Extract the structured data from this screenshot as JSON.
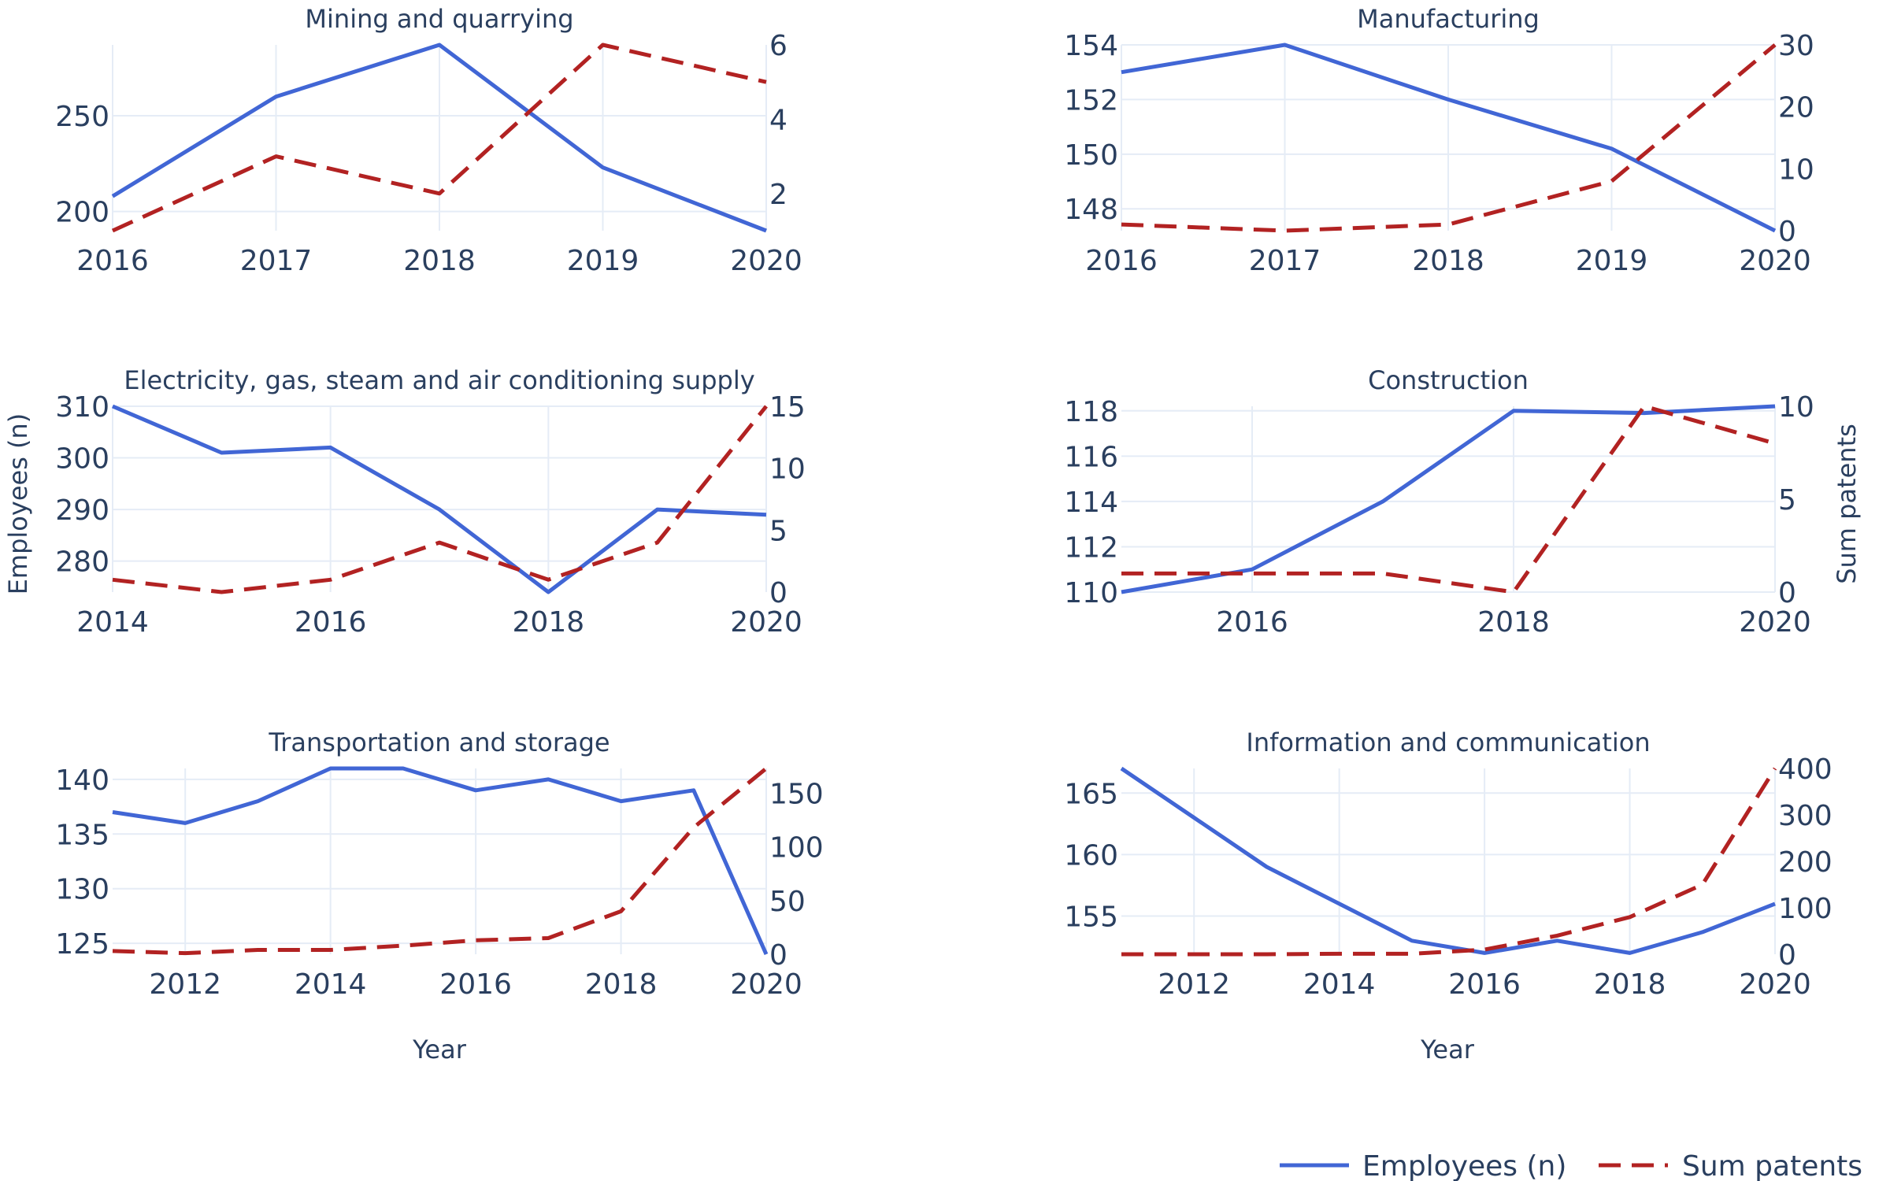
{
  "colors": {
    "employees": "#4166d5",
    "patents": "#b22222",
    "grid": "#e5ecf6",
    "text": "#2a3f5f"
  },
  "axis_titles": {
    "y_left": "Employees (n)",
    "y_right": "Sum patents",
    "x_bottom_left": "Year",
    "x_bottom_right": "Year"
  },
  "legend": {
    "position": "bottom-right",
    "items": [
      "Employees (n)",
      "Sum patents"
    ]
  },
  "chart_data": [
    {
      "type": "line",
      "title": "Mining and quarrying",
      "x": [
        2016,
        2017,
        2018,
        2019,
        2020
      ],
      "x_ticks": [
        2016,
        2017,
        2018,
        2019,
        2020
      ],
      "xlim": [
        2016,
        2020
      ],
      "series": [
        {
          "name": "Employees (n)",
          "axis": "left",
          "style": "solid",
          "values": [
            208,
            260,
            287,
            223,
            190
          ]
        },
        {
          "name": "Sum patents",
          "axis": "right",
          "style": "dash",
          "values": [
            1,
            3,
            2,
            6,
            5
          ]
        }
      ],
      "y_left": {
        "range": [
          190,
          287
        ],
        "ticks": [
          200,
          250
        ]
      },
      "y_right": {
        "range": [
          1,
          6
        ],
        "ticks": [
          2,
          4,
          6
        ]
      }
    },
    {
      "type": "line",
      "title": "Manufacturing",
      "x": [
        2016,
        2017,
        2018,
        2019,
        2020
      ],
      "x_ticks": [
        2016,
        2017,
        2018,
        2019,
        2020
      ],
      "xlim": [
        2016,
        2020
      ],
      "series": [
        {
          "name": "Employees (n)",
          "axis": "left",
          "style": "solid",
          "values": [
            153,
            154,
            152,
            150.2,
            147.2
          ]
        },
        {
          "name": "Sum patents",
          "axis": "right",
          "style": "dash",
          "values": [
            1,
            0,
            1,
            8,
            30
          ]
        }
      ],
      "y_left": {
        "range": [
          147.2,
          154
        ],
        "ticks": [
          148,
          150,
          152,
          154
        ]
      },
      "y_right": {
        "range": [
          0,
          30
        ],
        "ticks": [
          0,
          10,
          20,
          30
        ]
      }
    },
    {
      "type": "line",
      "title": "Electricity, gas, steam and air conditioning supply",
      "x": [
        2014,
        2015,
        2016,
        2017,
        2018,
        2019,
        2020
      ],
      "x_ticks": [
        2014,
        2016,
        2018,
        2020
      ],
      "xlim": [
        2014,
        2020
      ],
      "series": [
        {
          "name": "Employees (n)",
          "axis": "left",
          "style": "solid",
          "values": [
            310,
            301,
            302,
            290,
            274,
            290,
            289
          ]
        },
        {
          "name": "Sum patents",
          "axis": "right",
          "style": "dash",
          "values": [
            1,
            0,
            1,
            4,
            1,
            4,
            15
          ]
        }
      ],
      "y_left": {
        "range": [
          274,
          310
        ],
        "ticks": [
          280,
          290,
          300,
          310
        ]
      },
      "y_right": {
        "range": [
          0,
          15
        ],
        "ticks": [
          0,
          5,
          10,
          15
        ]
      }
    },
    {
      "type": "line",
      "title": "Construction",
      "x": [
        2015,
        2016,
        2017,
        2018,
        2019,
        2020
      ],
      "x_ticks": [
        2016,
        2018,
        2020
      ],
      "xlim": [
        2015,
        2020
      ],
      "series": [
        {
          "name": "Employees (n)",
          "axis": "left",
          "style": "solid",
          "values": [
            110,
            111,
            114,
            118,
            117.9,
            118.2
          ]
        },
        {
          "name": "Sum patents",
          "axis": "right",
          "style": "dash",
          "values": [
            1,
            1,
            1,
            0,
            10,
            8
          ]
        }
      ],
      "y_left": {
        "range": [
          110,
          118.2
        ],
        "ticks": [
          110,
          112,
          114,
          116,
          118
        ]
      },
      "y_right": {
        "range": [
          0,
          10
        ],
        "ticks": [
          0,
          5,
          10
        ]
      }
    },
    {
      "type": "line",
      "title": "Transportation and storage",
      "x": [
        2011,
        2012,
        2013,
        2014,
        2015,
        2016,
        2017,
        2018,
        2019,
        2020
      ],
      "x_ticks": [
        2012,
        2014,
        2016,
        2018,
        2020
      ],
      "xlim": [
        2011,
        2020
      ],
      "series": [
        {
          "name": "Employees (n)",
          "axis": "left",
          "style": "solid",
          "values": [
            137,
            136,
            138,
            141,
            141,
            139,
            140,
            138,
            139,
            124
          ]
        },
        {
          "name": "Sum patents",
          "axis": "right",
          "style": "dash",
          "values": [
            3,
            1,
            4,
            4,
            8,
            13,
            15,
            40,
            118,
            173
          ]
        }
      ],
      "y_left": {
        "range": [
          124,
          141
        ],
        "ticks": [
          125,
          130,
          135,
          140
        ]
      },
      "y_right": {
        "range": [
          0,
          173
        ],
        "ticks": [
          0,
          50,
          100,
          150
        ]
      }
    },
    {
      "type": "line",
      "title": "Information and communication",
      "x": [
        2011,
        2012,
        2013,
        2014,
        2015,
        2016,
        2017,
        2018,
        2019,
        2020
      ],
      "x_ticks": [
        2012,
        2014,
        2016,
        2018,
        2020
      ],
      "xlim": [
        2011,
        2020
      ],
      "series": [
        {
          "name": "Employees (n)",
          "axis": "left",
          "style": "solid",
          "values": [
            167,
            163,
            159,
            156,
            153,
            152,
            153,
            152,
            153.7,
            156
          ]
        },
        {
          "name": "Sum patents",
          "axis": "right",
          "style": "dash",
          "values": [
            0,
            0,
            0,
            1,
            1,
            10,
            40,
            80,
            150,
            400
          ]
        }
      ],
      "y_left": {
        "range": [
          151.9,
          167
        ],
        "ticks": [
          155,
          160,
          165
        ]
      },
      "y_right": {
        "range": [
          0,
          400
        ],
        "ticks": [
          0,
          100,
          200,
          300,
          400
        ]
      }
    }
  ]
}
